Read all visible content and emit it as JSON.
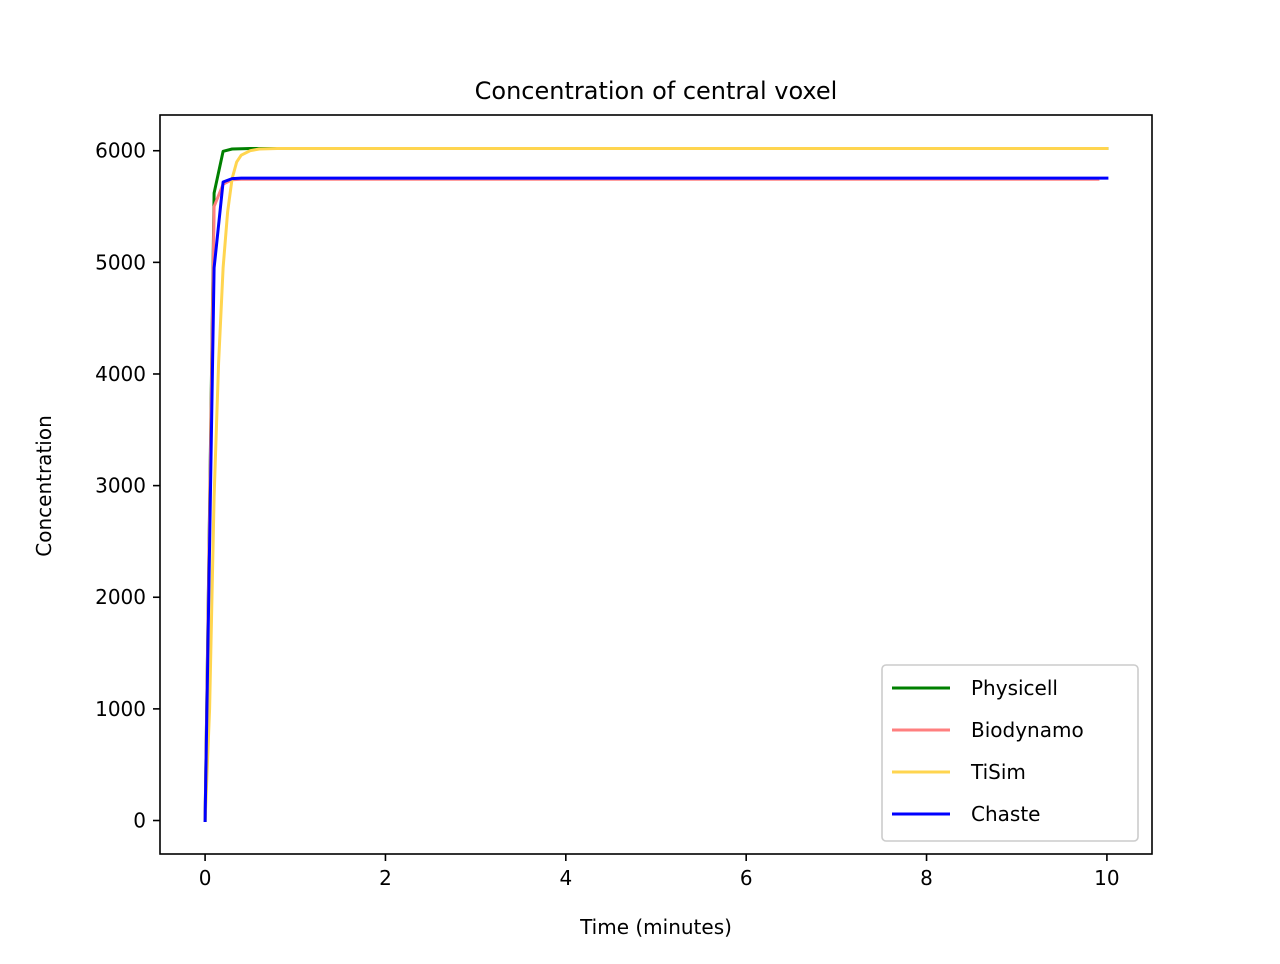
{
  "chart_data": {
    "type": "line",
    "title": "Concentration of central voxel",
    "xlabel": "Time (minutes)",
    "ylabel": "Concentration",
    "xlim": [
      -0.5,
      10.5
    ],
    "ylim": [
      -300,
      6320
    ],
    "xticks": [
      0,
      2,
      4,
      6,
      8,
      10
    ],
    "xtick_labels": [
      "0",
      "2",
      "4",
      "6",
      "8",
      "10"
    ],
    "yticks": [
      0,
      1000,
      2000,
      3000,
      4000,
      5000,
      6000
    ],
    "ytick_labels": [
      "0",
      "1000",
      "2000",
      "3000",
      "4000",
      "5000",
      "6000"
    ],
    "grid": false,
    "legend_position": "lower-right",
    "series": [
      {
        "name": "Physicell",
        "color": "#008000",
        "x": [
          0,
          0.1,
          0.2,
          0.3,
          0.4,
          0.5,
          1,
          2,
          4,
          6,
          8,
          10
        ],
        "y": [
          0,
          5620,
          5995,
          6015,
          6018,
          6020,
          6020,
          6020,
          6020,
          6020,
          6020,
          6020
        ]
      },
      {
        "name": "Biodynamo",
        "color": "#ff7f7f",
        "x": [
          0,
          0.1,
          0.2,
          0.3,
          0.4,
          0.6,
          1,
          2,
          4,
          6,
          8,
          9.9
        ],
        "y": [
          0,
          5500,
          5700,
          5740,
          5745,
          5745,
          5745,
          5745,
          5745,
          5745,
          5745,
          5745
        ]
      },
      {
        "name": "TiSim",
        "color": "#ffd54f",
        "x": [
          0,
          0.05,
          0.1,
          0.15,
          0.2,
          0.25,
          0.3,
          0.35,
          0.4,
          0.5,
          0.6,
          0.8,
          1,
          2,
          4,
          6,
          8,
          10
        ],
        "y": [
          0,
          1000,
          2900,
          4100,
          4950,
          5450,
          5750,
          5900,
          5960,
          6000,
          6015,
          6020,
          6020,
          6020,
          6020,
          6020,
          6020,
          6020
        ]
      },
      {
        "name": "Chaste",
        "color": "#0000ff",
        "x": [
          0,
          0.1,
          0.2,
          0.3,
          0.4,
          0.6,
          1,
          2,
          4,
          6,
          8,
          10
        ],
        "y": [
          0,
          4950,
          5720,
          5750,
          5755,
          5755,
          5755,
          5755,
          5755,
          5755,
          5755,
          5755
        ]
      }
    ]
  }
}
